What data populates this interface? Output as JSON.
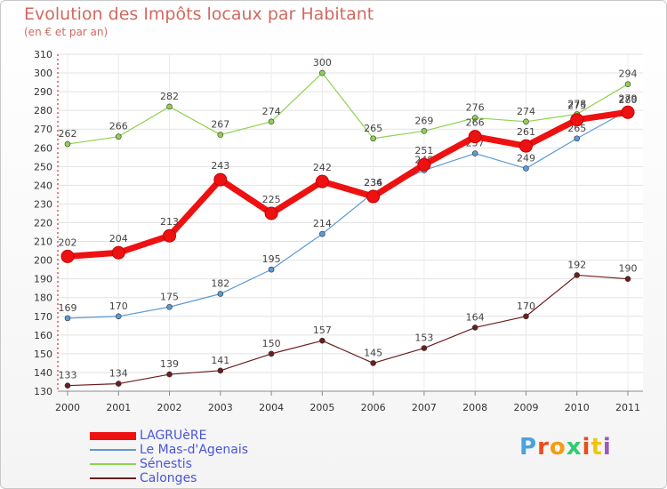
{
  "chart_data": {
    "type": "line",
    "title": "Evolution des Impôts locaux par Habitant",
    "subtitle": "(en € et par an)",
    "categories": [
      "2000",
      "2001",
      "2002",
      "2003",
      "2004",
      "2005",
      "2006",
      "2007",
      "2008",
      "2009",
      "2010",
      "2011"
    ],
    "ylim": [
      130,
      310
    ],
    "yticks": [
      130,
      140,
      150,
      160,
      170,
      180,
      190,
      200,
      210,
      220,
      230,
      240,
      250,
      260,
      270,
      280,
      290,
      300,
      310
    ],
    "grid": true,
    "legend_position": "bottom-left",
    "series": [
      {
        "name": "Sénestis",
        "color": "#8fd14f",
        "values": [
          262,
          266,
          282,
          267,
          274,
          300,
          265,
          269,
          276,
          274,
          278,
          294
        ]
      },
      {
        "name": "Le Mas-d'Agenais",
        "color": "#5b9bd5",
        "values": [
          169,
          170,
          175,
          182,
          195,
          214,
          236,
          248,
          257,
          249,
          265,
          280
        ]
      },
      {
        "name": "Calonges",
        "color": "#6b1e1e",
        "values": [
          133,
          134,
          139,
          141,
          150,
          157,
          145,
          153,
          164,
          170,
          192,
          190
        ]
      },
      {
        "name": "LAGRUèRE",
        "color": "#ee1111",
        "values": [
          202,
          204,
          213,
          243,
          225,
          242,
          234,
          251,
          266,
          261,
          275,
          279
        ]
      }
    ],
    "legend_order": [
      "LAGRUèRE",
      "Le Mas-d'Agenais",
      "Sénestis",
      "Calonges"
    ]
  },
  "logo": {
    "letters": [
      "P",
      "r",
      "o",
      "x",
      "i",
      "t",
      "i"
    ],
    "colors": [
      "#4aa3df",
      "#e94e1b",
      "#f39c12",
      "#2ecc71",
      "#e94e1b",
      "#f1c40f",
      "#9b59b6"
    ]
  }
}
